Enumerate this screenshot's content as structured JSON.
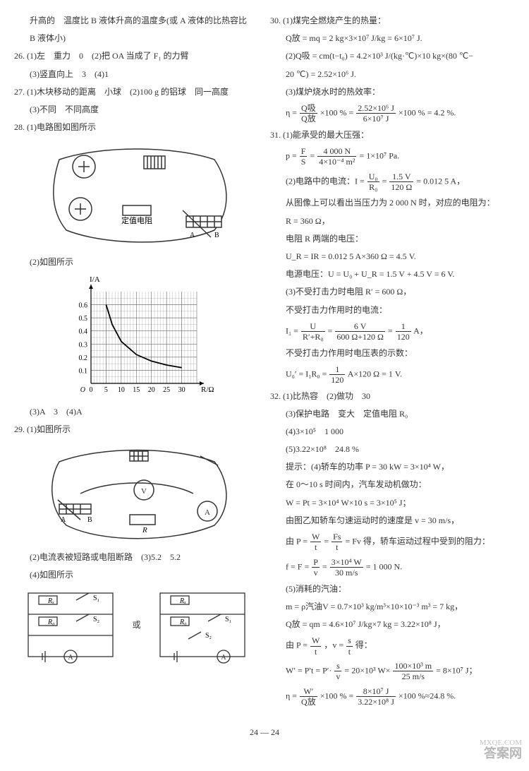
{
  "left": {
    "line0a": "升高的　温度比 B 液体升高的温度多(或 A 液体的比热容比",
    "line0b": "B 液体小)",
    "q26a": "26. (1)左　重力　0　(2)把 OA 当成了 F₁ 的力臂",
    "q26b": "(3)竖直向上　3　(4)1",
    "q27a": "27. (1)木块移动的距离　小球　(2)100 g 的铝球　同一高度",
    "q27b": "(3)不同　不同高度",
    "q28a": "28. (1)电路图如图所示",
    "q28b": "(2)如图所示",
    "q28c": "(3)A　3　(4)A",
    "q29a": "29. (1)如图所示",
    "q29b": "(2)电流表被短路或电阻断路　(3)5.2　5.2",
    "q29c": "(4)如图所示",
    "circuit_label": "定值电阻",
    "graph": {
      "xlabel": "R/Ω",
      "ylabel": "I/A",
      "xticks": [
        "0",
        "5",
        "10",
        "15",
        "20",
        "25",
        "30"
      ],
      "yticks": [
        "0.1",
        "0.2",
        "0.3",
        "0.4",
        "0.5",
        "0.6"
      ],
      "xmax": 35,
      "ymax": 0.7,
      "points": [
        [
          5,
          0.6
        ],
        [
          7,
          0.45
        ],
        [
          10,
          0.32
        ],
        [
          15,
          0.22
        ],
        [
          20,
          0.17
        ],
        [
          25,
          0.14
        ],
        [
          30,
          0.12
        ]
      ],
      "grid_color": "#555",
      "curve_color": "#000"
    },
    "sch": {
      "Rx": "Rₓ",
      "R0": "R₀",
      "S1": "S₁",
      "S2": "S₂",
      "or": "或",
      "A": "A"
    }
  },
  "right": {
    "q30a": "30. (1)煤完全燃烧产生的热量：",
    "q30b": "Q放 = mq = 2 kg×3×10⁷ J/kg = 6×10⁷ J.",
    "q30c": "(2)Q吸 = cm(t−t₀) = 4.2×10³ J/(kg·℃)×10 kg×(80 ℃−",
    "q30d": "20 ℃) = 2.52×10⁶ J.",
    "q30e": "(3)煤炉烧水时的热效率：",
    "q30f_pre": "η =",
    "q30f_num": "Q吸",
    "q30f_den": "Q放",
    "q30f_mid": "×100 % =",
    "q30f_num2": "2.52×10⁶ J",
    "q30f_den2": "6×10⁷ J",
    "q30f_post": "×100 % = 4.2 %.",
    "q31a": "31. (1)能承受的最大压强：",
    "q31b_pre": "p =",
    "q31b_num": "F",
    "q31b_den": "S",
    "q31b_mid": "=",
    "q31b_num2": "4 000 N",
    "q31b_den2": "4×10⁻⁴ m²",
    "q31b_post": "= 1×10⁷ Pa.",
    "q31c_pre": "(2)电路中的电流：I =",
    "q31c_num": "U₀",
    "q31c_den": "R₀",
    "q31c_mid": "=",
    "q31c_num2": "1.5 V",
    "q31c_den2": "120 Ω",
    "q31c_post": "= 0.012 5 A，",
    "q31d": "从图像上可以看出当压力为 2 000 N 时，对应的电阻为：",
    "q31e": "R = 360 Ω，",
    "q31f": "电阻 R 两端的电压：",
    "q31g": "U_R = IR = 0.012 5 A×360 Ω = 4.5 V.",
    "q31h": "电源电压：U = U₀ + U_R = 1.5 V + 4.5 V = 6 V.",
    "q31i": "(3)不受打击力时电阻 R′ = 600 Ω，",
    "q31j": "不受打击力作用时的电流：",
    "q31k_pre": "I₁ =",
    "q31k_num": "U",
    "q31k_den": "R′+R₀",
    "q31k_mid": "=",
    "q31k_num2": "6 V",
    "q31k_den2": "600 Ω+120 Ω",
    "q31k_mid2": "=",
    "q31k_num3": "1",
    "q31k_den3": "120",
    "q31k_post": " A，",
    "q31l": "不受打击力作用时电压表的示数：",
    "q31m_pre": "U₀′ = I₁R₀ =",
    "q31m_num": "1",
    "q31m_den": "120",
    "q31m_post": " A×120 Ω = 1 V.",
    "q32a": "32. (1)比热容　(2)做功　30",
    "q32b": "(3)保护电路　变大　定值电阻 R₀",
    "q32c": "(4)3×10⁵　1 000",
    "q32d": "(5)3.22×10⁸　24.8 %",
    "q32e": "提示：(4)轿车的功率 P = 30 kW = 3×10⁴ W，",
    "q32f": "在 0～10 s 时间内，汽车发动机做功：",
    "q32g": "W = Pt = 3×10⁴ W×10 s = 3×10⁵ J；",
    "q32h": "由图乙知轿车匀速运动时的速度是 v = 30 m/s，",
    "q32i_pre": "由 P =",
    "q32i_num": "W",
    "q32i_den": "t",
    "q32i_mid": "=",
    "q32i_num2": "Fs",
    "q32i_den2": "t",
    "q32i_post": "= Fv 得，轿车运动过程中受到的阻力：",
    "q32j_pre": "f = F =",
    "q32j_num": "P",
    "q32j_den": "v",
    "q32j_mid": "=",
    "q32j_num2": "3×10⁴ W",
    "q32j_den2": "30 m/s",
    "q32j_post": "= 1 000 N.",
    "q32k": "(5)消耗的汽油：",
    "q32l": "m = ρ汽油V = 0.7×10³ kg/m³×10×10⁻³ m³ = 7 kg，",
    "q32m": "Q放 = qm = 4.6×10⁷ J/kg×7 kg = 3.22×10⁸ J，",
    "q32n_pre": "由 P =",
    "q32n_num": "W",
    "q32n_den": "t",
    "q32n_mid": "，v =",
    "q32n_num2": "s",
    "q32n_den2": "t",
    "q32n_post": "得：",
    "q32o_pre": "W′ = P′t = P′·",
    "q32o_num": "s",
    "q32o_den": "v",
    "q32o_mid": "= 20×10³ W×",
    "q32o_num2": "100×10³ m",
    "q32o_den2": "25 m/s",
    "q32o_post": "= 8×10⁷ J；",
    "q32p_pre": "η =",
    "q32p_num": "W′",
    "q32p_den": "Q放",
    "q32p_mid": "×100 % =",
    "q32p_num2": "8×10⁷ J",
    "q32p_den2": "3.22×10⁸ J",
    "q32p_post": "×100 %≈24.8 %."
  },
  "footer": "24 — 24",
  "watermark": "答案网",
  "watermark2": "MXQE.COM"
}
